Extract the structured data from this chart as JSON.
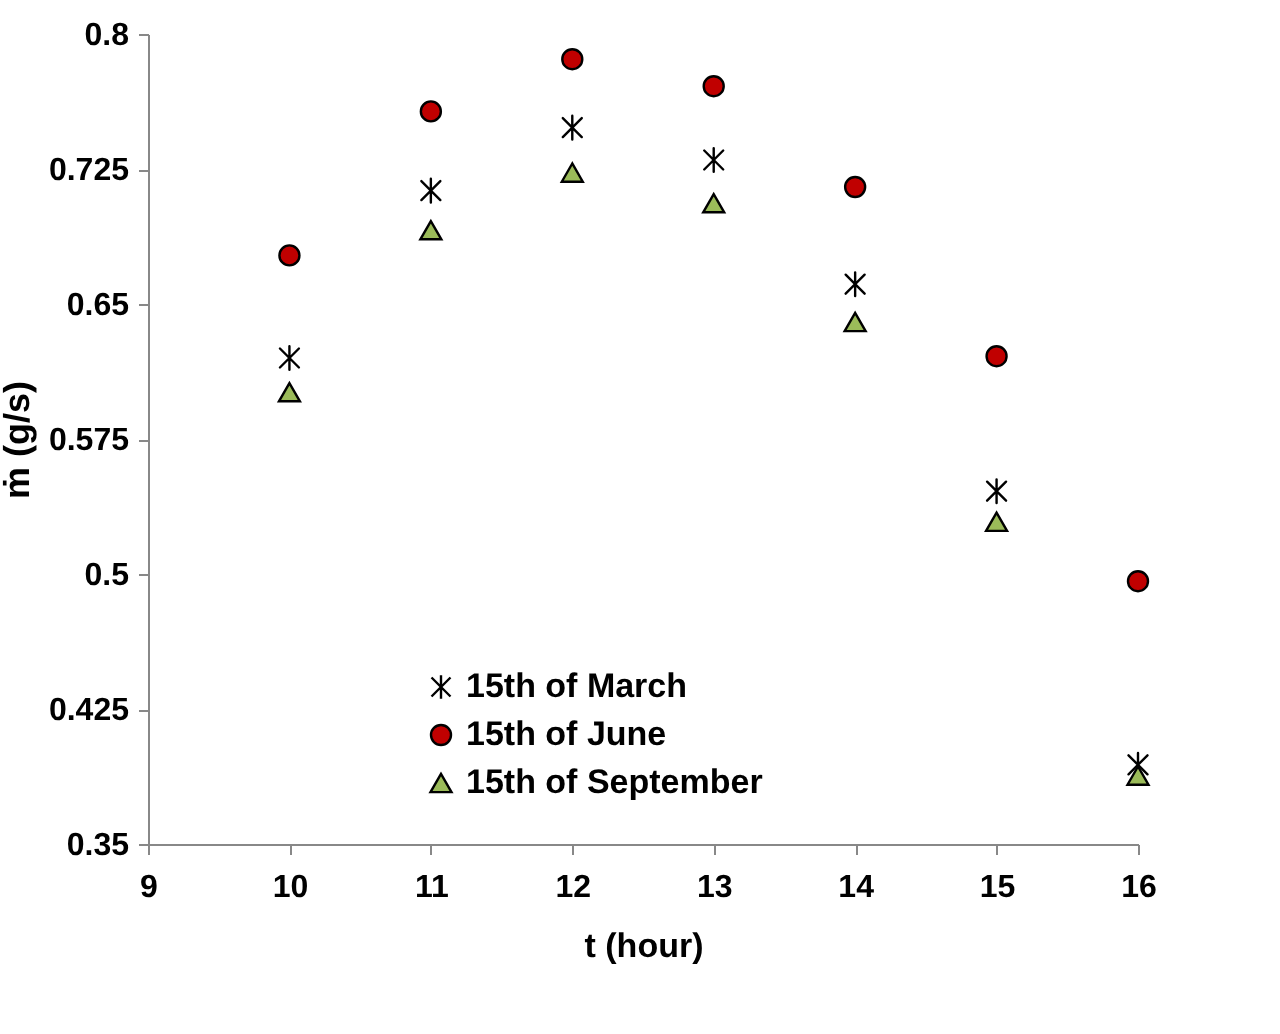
{
  "chart_data": {
    "type": "scatter",
    "xlabel": "t (hour)",
    "ylabel": "ṁ (g/s)",
    "x": [
      10,
      11,
      12,
      13,
      14,
      15,
      16
    ],
    "series": [
      {
        "name": "15th of March",
        "color": "#000000",
        "marker": "cross",
        "values": [
          0.62,
          0.713,
          0.748,
          0.73,
          0.661,
          0.546,
          0.394
        ]
      },
      {
        "name": "15th of June",
        "color": "#c00000",
        "marker": "circle",
        "values": [
          0.677,
          0.757,
          0.786,
          0.771,
          0.715,
          0.621,
          0.496
        ]
      },
      {
        "name": "15th of September",
        "color": "#9bbb59",
        "marker": "triangle",
        "values": [
          0.601,
          0.691,
          0.723,
          0.706,
          0.64,
          0.529,
          0.388
        ]
      }
    ],
    "xlim": [
      9,
      16
    ],
    "xticks": [
      9,
      10,
      11,
      12,
      13,
      14,
      15,
      16
    ],
    "ylim": [
      0.35,
      0.8
    ],
    "yticks": [
      0.35,
      0.425,
      0.5,
      0.575,
      0.65,
      0.725,
      0.8
    ],
    "grid": false,
    "legend": "bottom left"
  }
}
